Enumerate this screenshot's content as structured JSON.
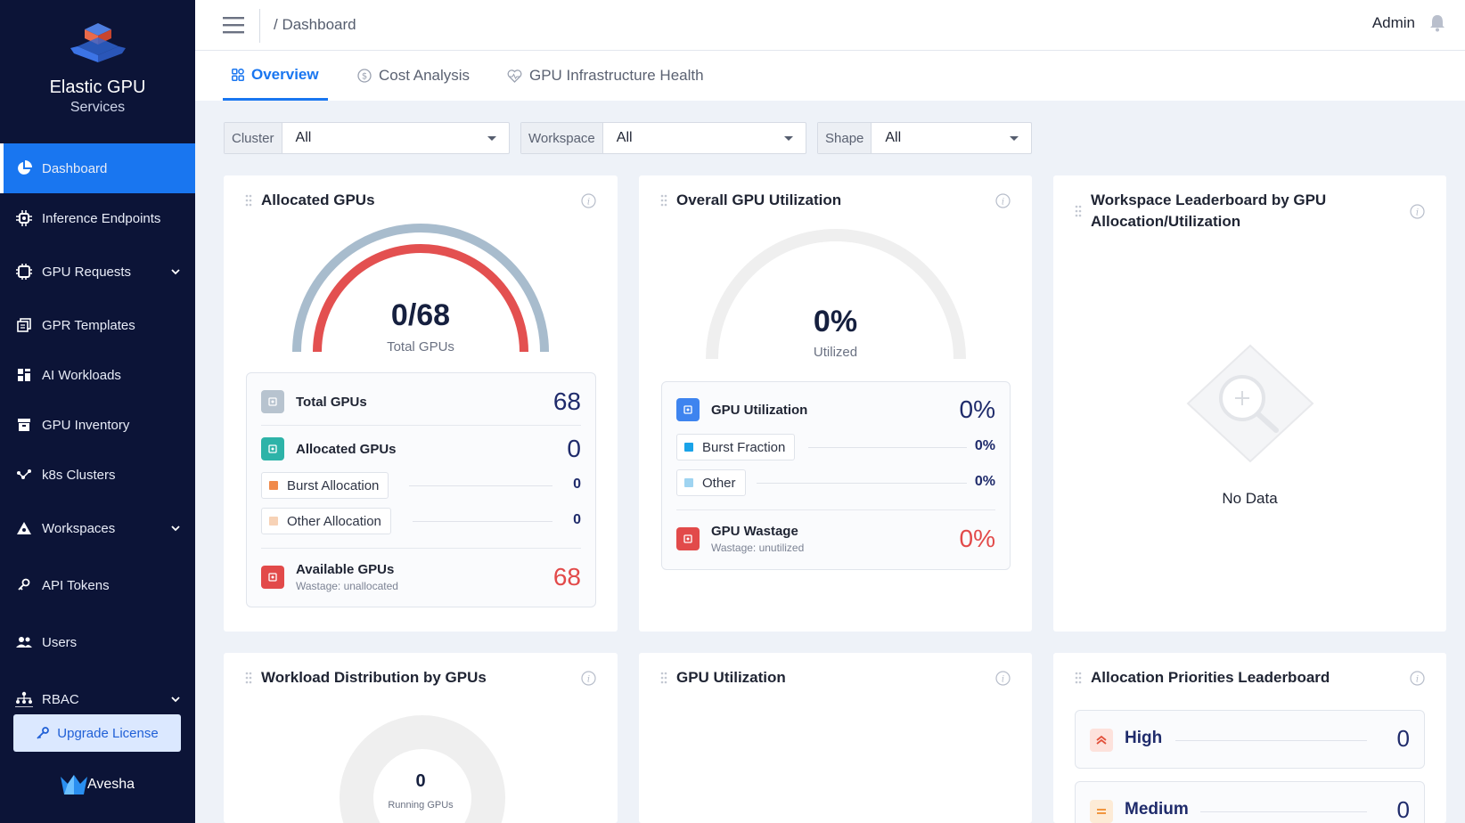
{
  "brand": {
    "title": "Elastic GPU",
    "subtitle": "Services"
  },
  "sidebar": {
    "items": [
      {
        "label": "Dashboard",
        "icon": "pie-chart-icon",
        "active": true
      },
      {
        "label": "Inference Endpoints",
        "icon": "chip-gear-icon"
      },
      {
        "label": "GPU Requests",
        "icon": "chip-icon",
        "expandable": true
      },
      {
        "label": "GPR Templates",
        "icon": "copy-icon"
      },
      {
        "label": "AI Workloads",
        "icon": "grid-icon"
      },
      {
        "label": "GPU Inventory",
        "icon": "archive-icon"
      },
      {
        "label": "k8s Clusters",
        "icon": "cluster-icon"
      },
      {
        "label": "Workspaces",
        "icon": "workspace-icon",
        "expandable": true
      },
      {
        "label": "API Tokens",
        "icon": "key-icon"
      },
      {
        "label": "Users",
        "icon": "users-icon"
      },
      {
        "label": "RBAC",
        "icon": "rbac-icon",
        "expandable": true
      }
    ],
    "upgrade_label": "Upgrade License",
    "footer_brand": "Avesha"
  },
  "topbar": {
    "breadcrumb": "/ Dashboard",
    "user": "Admin"
  },
  "tabs": [
    {
      "label": "Overview",
      "active": true
    },
    {
      "label": "Cost Analysis"
    },
    {
      "label": "GPU Infrastructure Health"
    }
  ],
  "filters": [
    {
      "label": "Cluster",
      "value": "All"
    },
    {
      "label": "Workspace",
      "value": "All"
    },
    {
      "label": "Shape",
      "value": "All"
    }
  ],
  "allocated": {
    "title": "Allocated GPUs",
    "gauge_value": "0/68",
    "gauge_caption": "Total GPUs",
    "total_label": "Total GPUs",
    "total_value": "68",
    "allocated_label": "Allocated GPUs",
    "allocated_value": "0",
    "burst_label": "Burst Allocation",
    "burst_value": "0",
    "other_label": "Other Allocation",
    "other_value": "0",
    "available_label": "Available GPUs",
    "available_sub": "Wastage: unallocated",
    "available_value": "68",
    "allocated_fraction": 0
  },
  "utilization": {
    "title": "Overall GPU Utilization",
    "gauge_value": "0%",
    "gauge_caption": "Utilized",
    "gpu_util_label": "GPU Utilization",
    "gpu_util_value": "0%",
    "burst_label": "Burst Fraction",
    "burst_value": "0%",
    "other_label": "Other",
    "other_value": "0%",
    "wastage_label": "GPU Wastage",
    "wastage_sub": "Wastage: unutilized",
    "wastage_value": "0%"
  },
  "leaderboard": {
    "title_line1": "Workspace Leaderboard by GPU",
    "title_line2": "Allocation/Utilization",
    "empty_text": "No Data"
  },
  "workload": {
    "title": "Workload Distribution by GPUs",
    "center_value": "0",
    "center_caption": "Running GPUs"
  },
  "gpu_util_card": {
    "title": "GPU Utilization"
  },
  "priorities": {
    "title": "Allocation Priorities Leaderboard",
    "items": [
      {
        "label": "High",
        "value": "0"
      },
      {
        "label": "Medium",
        "value": "0"
      }
    ]
  },
  "colors": {
    "sidebar_bg": "#0c1437",
    "accent": "#1976f0",
    "danger": "#e24a4a",
    "burst": "#f08a4b",
    "other_alloc": "#f7d2b6",
    "util_burst": "#1aa3e8",
    "util_other": "#9fd4f1"
  }
}
